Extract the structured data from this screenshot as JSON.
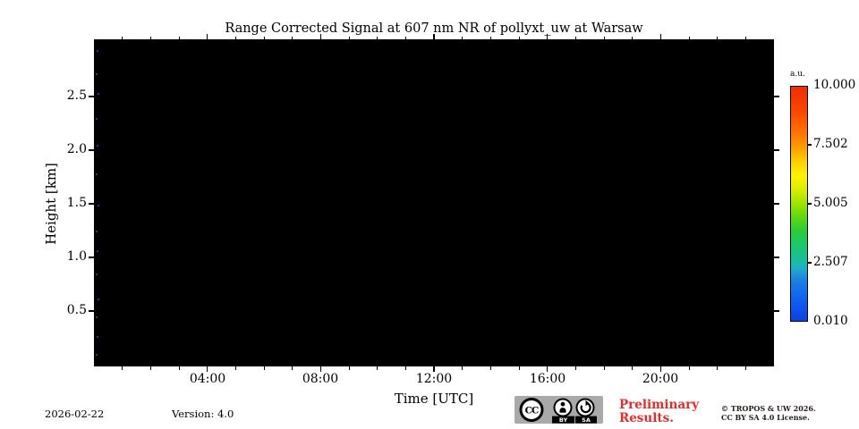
{
  "header": {
    "title": "Range Corrected Signal at 607 nm NR of pollyxt_uw at Warsaw"
  },
  "chart_data": {
    "type": "heatmap",
    "title": "Range Corrected Signal at 607 nm NR of pollyxt_uw at Warsaw",
    "xlabel": "Time [UTC]",
    "ylabel": "Height [km]",
    "x_tick_labels": [
      "04:00",
      "08:00",
      "12:00",
      "16:00",
      "20:00"
    ],
    "x_range_hours": [
      0,
      24
    ],
    "x_major_tick_interval_hours": 4,
    "x_minor_tick_interval_hours": 1,
    "y_tick_labels": [
      "0.5",
      "1.0",
      "1.5",
      "2.0",
      "2.5"
    ],
    "y_range_km": [
      0.0,
      3.05
    ],
    "grid": false,
    "legend": null,
    "values_summary": "Entire time-height field is at or below the colorbar minimum (rendered solid black); only sparse faint blue speckles appear near the 00:00 left edge.",
    "colorbar": {
      "unit": "a.u.",
      "tick_labels": [
        "10.000",
        "7.502",
        "5.005",
        "2.507",
        "0.010"
      ],
      "min": 0.01,
      "max": 10.0,
      "colormap": "jet",
      "position": "right"
    }
  },
  "footer": {
    "date": "2026-02-22",
    "version": "Version: 4.0",
    "preliminary_line1": "Preliminary",
    "preliminary_line2": "Results.",
    "copyright_line1": "© TROPOS & UW 2026.",
    "copyright_line2": "CC BY SA 4.0 License.",
    "cc_badge": {
      "cc": "CC",
      "by": "BY",
      "sa": "SA"
    }
  },
  "colors": {
    "plot_background": "#000000",
    "page_background": "#ffffff",
    "preliminary_red": "#e62b2b",
    "copyright_text": "#241b1b",
    "badge_gray": "#a9a9a9",
    "speckle_blue": "#2545e0"
  }
}
